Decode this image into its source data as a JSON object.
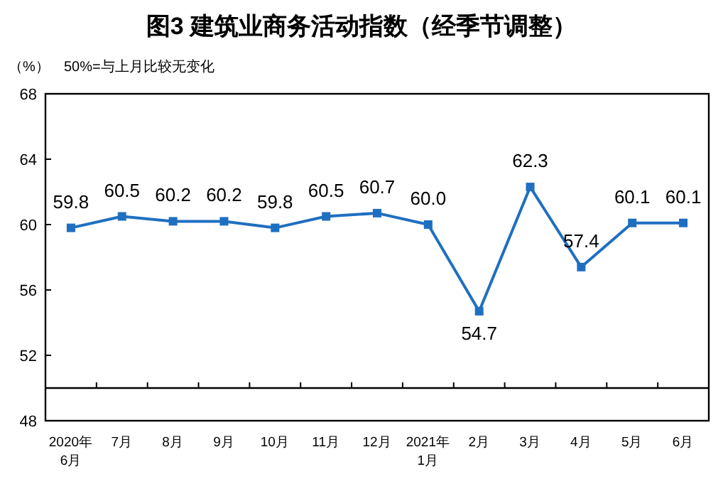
{
  "chart_data": {
    "type": "line",
    "title": "图3  建筑业商务活动指数（经季节调整）",
    "ylabel": "（%）",
    "annotations": [
      "50%=与上月比较无变化"
    ],
    "categories": [
      "2020年\n6月",
      "7月",
      "8月",
      "9月",
      "10月",
      "11月",
      "12月",
      "2021年\n1月",
      "2月",
      "3月",
      "4月",
      "5月",
      "6月"
    ],
    "series": [
      {
        "color": "#1f6fc0",
        "values": [
          59.8,
          60.5,
          60.2,
          60.2,
          59.8,
          60.5,
          60.7,
          60.0,
          54.7,
          62.3,
          57.4,
          60.1,
          60.1
        ]
      }
    ],
    "ylim": [
      48,
      68
    ],
    "yticks": [
      48,
      52,
      56,
      60,
      64,
      68
    ],
    "ref_lines": [
      {
        "axis": "y",
        "value": 50,
        "color": "#000000"
      }
    ],
    "value_labels": [
      "59.8",
      "60.5",
      "60.2",
      "60.2",
      "59.8",
      "60.5",
      "60.7",
      "60.0",
      "54.7",
      "62.3",
      "57.4",
      "60.1",
      "60.1"
    ],
    "marker": "square",
    "line_style": "solid",
    "grid": false
  }
}
